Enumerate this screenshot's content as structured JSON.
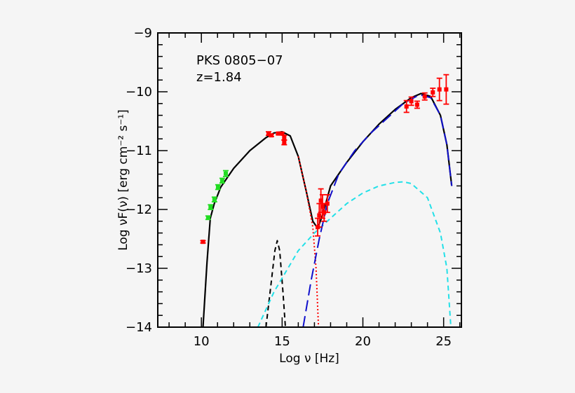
{
  "chart_data": {
    "type": "scatter",
    "title": "",
    "annotations": [
      "PKS 0805−07",
      "z=1.84"
    ],
    "xlabel": "Log ν [Hz]",
    "ylabel": "Log νF(ν) [erg cm⁻² s⁻¹]",
    "xlim": [
      7.3,
      26.1
    ],
    "ylim": [
      -14,
      -9
    ],
    "xticks": [
      10,
      15,
      20,
      25
    ],
    "yticks": [
      -9,
      -10,
      -11,
      -12,
      -13,
      -14
    ],
    "xtick_labels": [
      "10",
      "15",
      "20",
      "25"
    ],
    "ytick_labels": [
      "−9",
      "−10",
      "−11",
      "−12",
      "−13",
      "−14"
    ],
    "grid": false,
    "colors": {
      "red": "#ff0000",
      "green": "#22dd22",
      "black": "#000000",
      "blue": "#1010cc",
      "cyan": "#22e0e8"
    },
    "data_series": [
      {
        "color": "#ff0000",
        "points": [
          [
            10.1,
            -12.55,
            0.02
          ]
        ]
      },
      {
        "color": "#22dd22",
        "points": [
          [
            10.42,
            -12.14,
            0.03
          ],
          [
            10.57,
            -11.96,
            0.04
          ],
          [
            10.81,
            -11.83,
            0.04
          ],
          [
            11.03,
            -11.62,
            0.04
          ],
          [
            11.29,
            -11.51,
            0.04
          ],
          [
            11.51,
            -11.39,
            0.05
          ]
        ]
      },
      {
        "color": "#ff0000",
        "points": [
          [
            14.16,
            -10.71,
            0.03
          ],
          [
            14.33,
            -10.74,
            0.02
          ],
          [
            14.77,
            -10.71,
            0.02
          ],
          [
            14.99,
            -10.71,
            0.02
          ],
          [
            15.13,
            -10.78,
            0.04
          ],
          [
            15.13,
            -10.86,
            0.04
          ]
        ]
      },
      {
        "color": "#ff0000",
        "points": [
          [
            17.2,
            -12.3,
            0.15
          ],
          [
            17.3,
            -12.1,
            0.2
          ],
          [
            17.4,
            -11.85,
            0.2
          ],
          [
            17.5,
            -11.95,
            0.2
          ],
          [
            17.6,
            -12.05,
            0.15
          ],
          [
            17.8,
            -11.9,
            0.15
          ]
        ]
      },
      {
        "color": "#ff0000",
        "points": [
          [
            22.7,
            -10.25,
            0.1
          ],
          [
            23.0,
            -10.16,
            0.07
          ],
          [
            23.36,
            -10.22,
            0.06
          ],
          [
            23.83,
            -10.08,
            0.06
          ],
          [
            24.33,
            -10.01,
            0.07
          ],
          [
            24.74,
            -9.96,
            0.19
          ],
          [
            25.16,
            -9.96,
            0.25
          ]
        ]
      }
    ],
    "model_curves": [
      {
        "style": "solid",
        "color": "#000000",
        "points": [
          [
            10.1,
            -14
          ],
          [
            10.35,
            -12.9
          ],
          [
            10.55,
            -12.15
          ],
          [
            10.8,
            -11.9
          ],
          [
            11.2,
            -11.62
          ],
          [
            12,
            -11.3
          ],
          [
            13,
            -11.0
          ],
          [
            14,
            -10.78
          ],
          [
            14.5,
            -10.7
          ],
          [
            15,
            -10.68
          ],
          [
            15.5,
            -10.75
          ],
          [
            16,
            -11.1
          ],
          [
            16.5,
            -11.7
          ],
          [
            16.9,
            -12.2
          ],
          [
            17.2,
            -12.32
          ],
          [
            17.5,
            -12.1
          ],
          [
            18,
            -11.6
          ],
          [
            19,
            -11.2
          ],
          [
            20,
            -10.85
          ],
          [
            21,
            -10.55
          ],
          [
            22,
            -10.3
          ],
          [
            23,
            -10.1
          ],
          [
            23.6,
            -10.03
          ],
          [
            24.2,
            -10.08
          ],
          [
            24.8,
            -10.4
          ],
          [
            25.2,
            -10.9
          ],
          [
            25.5,
            -11.6
          ]
        ]
      },
      {
        "style": "dotted",
        "color": "#ff0000",
        "points": [
          [
            16,
            -11.1
          ],
          [
            16.5,
            -11.7
          ],
          [
            16.9,
            -12.3
          ],
          [
            17.1,
            -13.0
          ],
          [
            17.25,
            -14
          ]
        ]
      },
      {
        "style": "dashed",
        "color": "#000000",
        "points": [
          [
            14.0,
            -14
          ],
          [
            14.3,
            -13.3
          ],
          [
            14.55,
            -12.7
          ],
          [
            14.7,
            -12.53
          ],
          [
            14.85,
            -12.7
          ],
          [
            15.05,
            -13.4
          ],
          [
            15.2,
            -14
          ]
        ]
      },
      {
        "style": "dashed",
        "color": "#22e0e8",
        "points": [
          [
            13.5,
            -14
          ],
          [
            14.5,
            -13.4
          ],
          [
            16,
            -12.7
          ],
          [
            17,
            -12.4
          ],
          [
            18,
            -12.15
          ],
          [
            19,
            -11.9
          ],
          [
            20,
            -11.72
          ],
          [
            21,
            -11.6
          ],
          [
            22,
            -11.54
          ],
          [
            22.5,
            -11.53
          ],
          [
            23,
            -11.56
          ],
          [
            24,
            -11.8
          ],
          [
            24.8,
            -12.4
          ],
          [
            25.2,
            -13
          ],
          [
            25.45,
            -14
          ]
        ]
      },
      {
        "style": "longdash",
        "color": "#1010cc",
        "points": [
          [
            16.3,
            -14
          ],
          [
            16.8,
            -13.2
          ],
          [
            17.3,
            -12.5
          ],
          [
            17.8,
            -11.9
          ],
          [
            18.5,
            -11.4
          ],
          [
            19.5,
            -11.0
          ],
          [
            20.5,
            -10.7
          ],
          [
            21.5,
            -10.45
          ],
          [
            22.5,
            -10.2
          ],
          [
            23.5,
            -10.05
          ],
          [
            24.2,
            -10.1
          ],
          [
            24.8,
            -10.4
          ],
          [
            25.2,
            -10.9
          ],
          [
            25.5,
            -11.6
          ]
        ]
      }
    ]
  }
}
